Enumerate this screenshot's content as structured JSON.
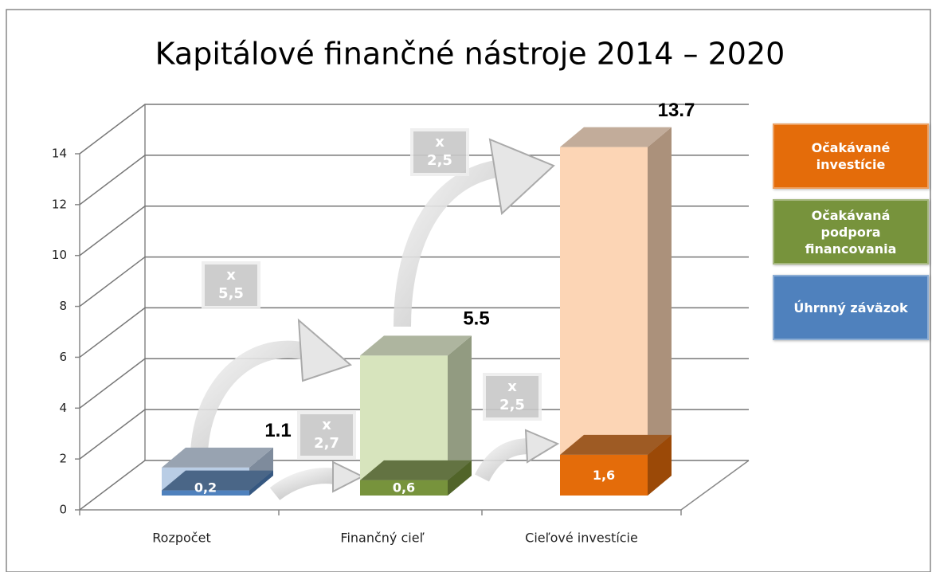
{
  "chart_data": {
    "type": "bar3d",
    "title": "Kapitálové finančné nástroje 2014 – 2020",
    "categories": [
      "Rozpočet",
      "Finančný cieľ",
      "Cieľové investície"
    ],
    "values": [
      1.1,
      5.5,
      13.7
    ],
    "base_values": [
      0.2,
      0.6,
      1.6
    ],
    "base_value_labels": [
      "0,2",
      "0,6",
      "1,6"
    ],
    "colors": [
      "#4f81bd",
      "#77933c",
      "#e46c0a"
    ],
    "light_colors": [
      "#b9cde5",
      "#d7e4bd",
      "#fcd5b5"
    ],
    "ylim": [
      0,
      14
    ],
    "yticks": [
      0,
      2,
      4,
      6,
      8,
      10,
      12,
      14
    ],
    "grid": true,
    "legend": [
      {
        "name": "Očakávané investície",
        "color": "#e46c0a"
      },
      {
        "name": "Očakávaná podpora financovania",
        "color": "#77933c"
      },
      {
        "name": "Úhrnný záväzok",
        "color": "#4f81bd"
      }
    ],
    "annotations": [
      {
        "lines": [
          "x",
          "5,5"
        ]
      },
      {
        "lines": [
          "x",
          "2,7"
        ]
      },
      {
        "lines": [
          "x",
          "2,5"
        ]
      },
      {
        "lines": [
          "x",
          "2,5"
        ]
      }
    ]
  }
}
